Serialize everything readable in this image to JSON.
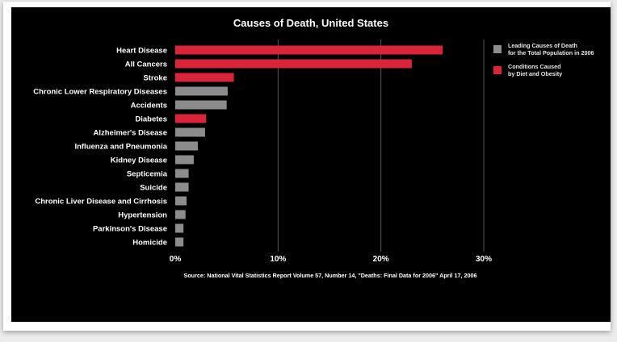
{
  "chart_data": {
    "type": "bar",
    "orientation": "horizontal",
    "title": "Causes of Death, United States",
    "categories": [
      "Heart Disease",
      "All Cancers",
      "Stroke",
      "Chronic Lower Respiratory Diseases",
      "Accidents",
      "Diabetes",
      "Alzheimer's Disease",
      "Influenza and Pneumonia",
      "Kidney Disease",
      "Septicemia",
      "Suicide",
      "Chronic Liver Disease and Cirrhosis",
      "Hypertension",
      "Parkinson's Disease",
      "Homicide"
    ],
    "values": [
      26.0,
      23.0,
      5.7,
      5.1,
      5.0,
      3.0,
      2.9,
      2.2,
      1.8,
      1.3,
      1.3,
      1.1,
      1.0,
      0.8,
      0.8
    ],
    "groups": [
      "diet",
      "diet",
      "diet",
      "total",
      "total",
      "diet",
      "total",
      "total",
      "total",
      "total",
      "total",
      "total",
      "total",
      "total",
      "total"
    ],
    "xlim": [
      0,
      30
    ],
    "xticks": [
      0,
      10,
      20,
      30
    ],
    "xtick_labels": [
      "0%",
      "10%",
      "20%",
      "30%"
    ],
    "grid": true,
    "legend_position": "top-right",
    "legend": [
      {
        "key": "total",
        "line1": "Leading Causes of Death",
        "line2": "for the Total Population in 2006",
        "color": "#8c8c8c"
      },
      {
        "key": "diet",
        "line1": "Conditions Caused",
        "line2": "by Diet and Obesity",
        "color": "#d9243a"
      }
    ],
    "source": "Source: National Vital Statistics Report Volume 57, Number 14, \"Deaths: Final Data for 2006\"  April 17, 2006"
  }
}
